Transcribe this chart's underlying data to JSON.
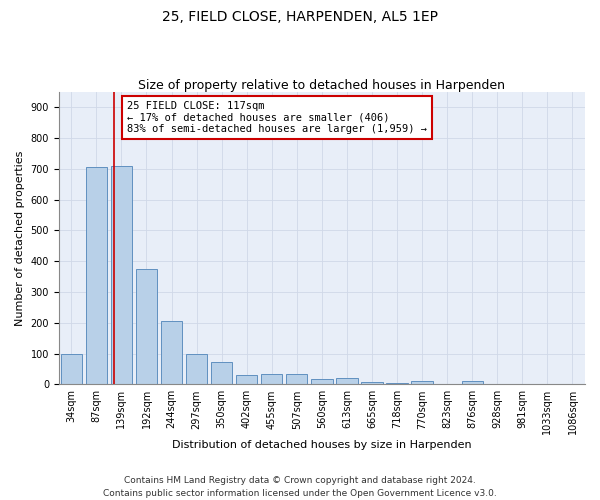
{
  "title": "25, FIELD CLOSE, HARPENDEN, AL5 1EP",
  "subtitle": "Size of property relative to detached houses in Harpenden",
  "xlabel": "Distribution of detached houses by size in Harpenden",
  "ylabel": "Number of detached properties",
  "categories": [
    "34sqm",
    "87sqm",
    "139sqm",
    "192sqm",
    "244sqm",
    "297sqm",
    "350sqm",
    "402sqm",
    "455sqm",
    "507sqm",
    "560sqm",
    "613sqm",
    "665sqm",
    "718sqm",
    "770sqm",
    "823sqm",
    "876sqm",
    "928sqm",
    "981sqm",
    "1033sqm",
    "1086sqm"
  ],
  "values": [
    100,
    707,
    710,
    375,
    205,
    100,
    72,
    30,
    32,
    32,
    18,
    20,
    8,
    5,
    10,
    0,
    10,
    0,
    0,
    0,
    2
  ],
  "bar_color": "#b8d0e8",
  "bar_edge_color": "#6090c0",
  "vline_color": "#cc0000",
  "vline_x_index": 1.72,
  "annotation_text": "25 FIELD CLOSE: 117sqm\n← 17% of detached houses are smaller (406)\n83% of semi-detached houses are larger (1,959) →",
  "annotation_box_facecolor": "#ffffff",
  "annotation_box_edgecolor": "#cc0000",
  "ylim": [
    0,
    950
  ],
  "yticks": [
    0,
    100,
    200,
    300,
    400,
    500,
    600,
    700,
    800,
    900
  ],
  "grid_color": "#d0d8e8",
  "background_color": "#e8eef8",
  "footnote": "Contains HM Land Registry data © Crown copyright and database right 2024.\nContains public sector information licensed under the Open Government Licence v3.0.",
  "title_fontsize": 10,
  "subtitle_fontsize": 9,
  "xlabel_fontsize": 8,
  "ylabel_fontsize": 8,
  "tick_fontsize": 7,
  "annotation_fontsize": 7.5,
  "footnote_fontsize": 6.5
}
